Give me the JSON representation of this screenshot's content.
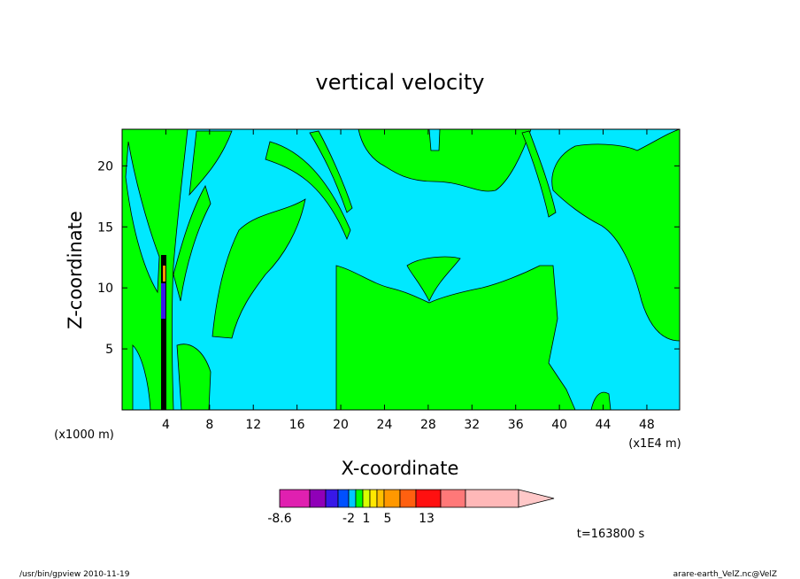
{
  "chart_data": {
    "type": "heatmap",
    "title": "vertical velocity",
    "xlabel": "X-coordinate",
    "ylabel": "Z-coordinate",
    "x_unit_left": "(x1000 m)",
    "x_unit_right": "(x1E4 m)",
    "xlim": [
      0,
      51
    ],
    "ylim": [
      0,
      23
    ],
    "x_ticks": [
      4,
      8,
      12,
      16,
      20,
      24,
      28,
      32,
      36,
      40,
      44,
      48
    ],
    "y_ticks": [
      5,
      10,
      15,
      20
    ],
    "colorbar": {
      "levels": [
        {
          "value": -8.6,
          "color": "#e020b0"
        },
        {
          "value": null,
          "color": "#9000b8"
        },
        {
          "value": null,
          "color": "#3818e8"
        },
        {
          "value": -2,
          "color": "#0050ff"
        },
        {
          "value": null,
          "color": "#00c8ff"
        },
        {
          "value": null,
          "color": "#00ff00"
        },
        {
          "value": 1,
          "color": "#d8ff00"
        },
        {
          "value": null,
          "color": "#ffe800"
        },
        {
          "value": null,
          "color": "#ffc000"
        },
        {
          "value": 5,
          "color": "#ff9800"
        },
        {
          "value": null,
          "color": "#ff6010"
        },
        {
          "value": null,
          "color": "#ff1010"
        },
        {
          "value": 13,
          "color": "#ff7878"
        },
        {
          "value": null,
          "color": "#ffb8b8"
        }
      ],
      "labels": [
        "-8.6",
        "-2",
        "1",
        "5",
        "13"
      ],
      "extend": "max"
    },
    "background_color": "#00e8ff",
    "field_color": "#00ff00",
    "time_label": "t=163800 s",
    "footer_left": "/usr/bin/gpview   2010-11-19",
    "footer_right": "arare-earth_VelZ.nc@VelZ"
  }
}
